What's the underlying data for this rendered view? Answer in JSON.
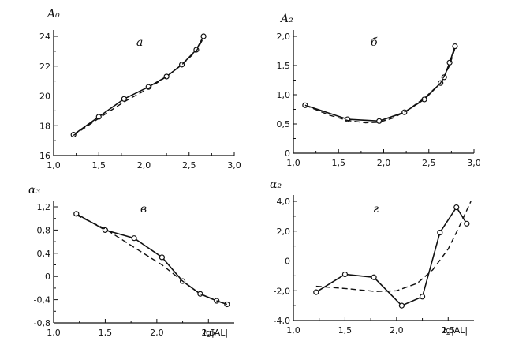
{
  "chart_data": [
    {
      "type": "line",
      "panel_label": "а",
      "ylabel": "A₀",
      "xlabel": "",
      "xlim": [
        1.0,
        3.0
      ],
      "ylim": [
        16,
        24
      ],
      "xticks": [
        "1,0",
        "1,5",
        "2,0",
        "2,5",
        "3,0"
      ],
      "yticks": [
        "16",
        "18",
        "20",
        "22",
        "24"
      ],
      "series": [
        {
          "style": "solid-markers",
          "x": [
            1.22,
            1.5,
            1.78,
            2.05,
            2.25,
            2.42,
            2.58,
            2.66
          ],
          "y": [
            17.4,
            18.6,
            19.8,
            20.6,
            21.3,
            22.1,
            23.1,
            24.0
          ]
        },
        {
          "style": "dashed",
          "x": [
            1.22,
            1.5,
            1.78,
            2.05,
            2.25,
            2.42,
            2.58,
            2.66
          ],
          "y": [
            17.35,
            18.5,
            19.6,
            20.5,
            21.3,
            22.1,
            23.0,
            23.9
          ]
        }
      ]
    },
    {
      "type": "line",
      "panel_label": "б",
      "ylabel": "A₂",
      "xlabel": "",
      "xlim": [
        1.0,
        3.0
      ],
      "ylim": [
        0,
        2.0
      ],
      "xticks": [
        "1,0",
        "1,5",
        "2,0",
        "2,5",
        "3,0"
      ],
      "yticks": [
        "0",
        "0,5",
        "1,0",
        "1,5",
        "2,0"
      ],
      "series": [
        {
          "style": "solid-markers",
          "x": [
            1.13,
            1.6,
            1.95,
            2.23,
            2.45,
            2.63,
            2.67,
            2.73,
            2.79
          ],
          "y": [
            0.82,
            0.58,
            0.55,
            0.7,
            0.92,
            1.2,
            1.3,
            1.55,
            1.83
          ]
        },
        {
          "style": "dashed",
          "x": [
            1.13,
            1.4,
            1.6,
            1.8,
            1.95,
            2.1,
            2.25,
            2.45,
            2.63,
            2.73,
            2.79
          ],
          "y": [
            0.82,
            0.65,
            0.56,
            0.52,
            0.53,
            0.6,
            0.72,
            0.94,
            1.2,
            1.5,
            1.8
          ]
        }
      ]
    },
    {
      "type": "line",
      "panel_label": "в",
      "ylabel": "α₃",
      "xlabel": "lg|AL|",
      "xlim": [
        1.0,
        2.75
      ],
      "ylim": [
        -0.8,
        1.2
      ],
      "xticks": [
        "1,0",
        "1,5",
        "2,0",
        "2,5"
      ],
      "yticks": [
        "-0,8",
        "-0,4",
        "0",
        "0,4",
        "0,8",
        "1,2"
      ],
      "series": [
        {
          "style": "solid-markers",
          "x": [
            1.22,
            1.5,
            1.78,
            2.05,
            2.25,
            2.42,
            2.58,
            2.68
          ],
          "y": [
            1.08,
            0.8,
            0.66,
            0.33,
            -0.08,
            -0.3,
            -0.42,
            -0.48
          ]
        },
        {
          "style": "dashed",
          "x": [
            1.22,
            1.5,
            1.78,
            2.05,
            2.25,
            2.42,
            2.58,
            2.68
          ],
          "y": [
            1.06,
            0.82,
            0.5,
            0.2,
            -0.08,
            -0.3,
            -0.42,
            -0.48
          ]
        }
      ]
    },
    {
      "type": "line",
      "panel_label": "г",
      "ylabel": "α₂",
      "xlabel": "lg|AL|",
      "xlim": [
        1.0,
        2.75
      ],
      "ylim": [
        -4.0,
        4.0
      ],
      "xticks": [
        "1,0",
        "1,5",
        "2,0",
        "2,5"
      ],
      "yticks": [
        "-4,0",
        "-2,0",
        "0",
        "2,0",
        "4,0"
      ],
      "series": [
        {
          "style": "solid-markers",
          "x": [
            1.22,
            1.5,
            1.78,
            2.05,
            2.25,
            2.42,
            2.58,
            2.68
          ],
          "y": [
            -2.1,
            -0.9,
            -1.1,
            -3.0,
            -2.4,
            1.9,
            3.6,
            2.5
          ]
        },
        {
          "style": "dashed",
          "x": [
            1.22,
            1.5,
            1.8,
            2.0,
            2.2,
            2.35,
            2.5,
            2.6,
            2.72
          ],
          "y": [
            -1.7,
            -1.85,
            -2.05,
            -2.0,
            -1.5,
            -0.6,
            0.8,
            2.2,
            4.0
          ]
        }
      ]
    }
  ]
}
